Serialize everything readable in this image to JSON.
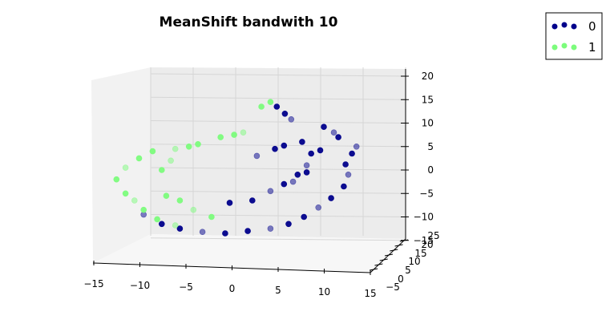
{
  "chart_data": {
    "type": "scatter",
    "title": "MeanShift bandwith 10",
    "projection": "3d",
    "xlim": [
      -15,
      15
    ],
    "ylim": [
      -5,
      25
    ],
    "zlim": [
      -15,
      20
    ],
    "x_ticks": [
      "−15",
      "−10",
      "−5",
      "0",
      "5",
      "10",
      "15"
    ],
    "y_ticks": [
      "−5",
      "0",
      "5",
      "10",
      "15",
      "20",
      "25"
    ],
    "z_ticks": [
      "−15",
      "−10",
      "−5",
      "0",
      "5",
      "10",
      "15",
      "20"
    ],
    "grid": true,
    "legend_position": "top-right",
    "series": [
      {
        "name": "0",
        "color": "#00008b",
        "points": [
          {
            "x": 5.2,
            "y": 0,
            "z": 13.5
          },
          {
            "x": 6.1,
            "y": 0,
            "z": 12.0
          },
          {
            "x": 6.8,
            "y": 0,
            "z": 10.8
          },
          {
            "x": 10.4,
            "y": 0,
            "z": 9.2
          },
          {
            "x": 12.0,
            "y": 0,
            "z": 7.0
          },
          {
            "x": 14.0,
            "y": 0,
            "z": 5.0
          },
          {
            "x": 13.5,
            "y": 0,
            "z": 3.5
          },
          {
            "x": 12.8,
            "y": 0,
            "z": 1.2
          },
          {
            "x": 13.1,
            "y": 0,
            "z": -1.0
          },
          {
            "x": 12.6,
            "y": 0,
            "z": -3.5
          },
          {
            "x": 11.2,
            "y": 0,
            "z": -6.0
          },
          {
            "x": 9.8,
            "y": 0,
            "z": -8.0
          },
          {
            "x": 8.2,
            "y": 0,
            "z": -10.0
          },
          {
            "x": 6.5,
            "y": 0,
            "z": -11.5
          },
          {
            "x": 4.5,
            "y": 0,
            "z": -12.5
          },
          {
            "x": 2.0,
            "y": 0,
            "z": -13.0
          },
          {
            "x": -0.5,
            "y": 0,
            "z": -13.5
          },
          {
            "x": -3.0,
            "y": 0,
            "z": -13.2
          },
          {
            "x": -5.5,
            "y": 0,
            "z": -12.5
          },
          {
            "x": -7.5,
            "y": 0,
            "z": -11.5
          },
          {
            "x": -9.5,
            "y": 0,
            "z": -9.5
          },
          {
            "x": 8.0,
            "y": 0,
            "z": 6.0
          },
          {
            "x": 9.0,
            "y": 0,
            "z": 3.5
          },
          {
            "x": 8.5,
            "y": 0,
            "z": 1.0
          },
          {
            "x": 7.5,
            "y": 0,
            "z": -1.0
          },
          {
            "x": 6.0,
            "y": 0,
            "z": -3.0
          },
          {
            "x": 4.5,
            "y": 0,
            "z": -4.5
          },
          {
            "x": 2.5,
            "y": 0,
            "z": -6.5
          },
          {
            "x": 0.0,
            "y": 0,
            "z": -7.0
          },
          {
            "x": 3.0,
            "y": 0,
            "z": 3.0
          },
          {
            "x": 5.0,
            "y": 0,
            "z": 4.5
          },
          {
            "x": 6.0,
            "y": 0,
            "z": 5.2
          },
          {
            "x": 7.0,
            "y": 0,
            "z": -2.5
          },
          {
            "x": 8.5,
            "y": 0,
            "z": -0.5
          },
          {
            "x": 10.0,
            "y": 0,
            "z": 4.2
          },
          {
            "x": 11.5,
            "y": 0,
            "z": 8.0
          }
        ]
      },
      {
        "name": "1",
        "color": "#7cfc7c",
        "points": [
          {
            "x": 4.5,
            "y": 0,
            "z": 14.5
          },
          {
            "x": 3.5,
            "y": 0,
            "z": 13.5
          },
          {
            "x": 1.5,
            "y": 0,
            "z": 8.0
          },
          {
            "x": -1.0,
            "y": 0,
            "z": 7.0
          },
          {
            "x": -3.5,
            "y": 0,
            "z": 5.5
          },
          {
            "x": -6.0,
            "y": 0,
            "z": 4.5
          },
          {
            "x": -8.5,
            "y": 0,
            "z": 4.0
          },
          {
            "x": -10.0,
            "y": 0,
            "z": 2.5
          },
          {
            "x": -11.5,
            "y": 0,
            "z": 0.5
          },
          {
            "x": -12.5,
            "y": 0,
            "z": -2.0
          },
          {
            "x": -11.5,
            "y": 0,
            "z": -5.0
          },
          {
            "x": -10.5,
            "y": 0,
            "z": -6.5
          },
          {
            "x": -9.5,
            "y": 0,
            "z": -8.5
          },
          {
            "x": -8.0,
            "y": 0,
            "z": -10.5
          },
          {
            "x": -6.0,
            "y": 0,
            "z": -11.8
          },
          {
            "x": -7.0,
            "y": 0,
            "z": -5.5
          },
          {
            "x": -5.5,
            "y": 0,
            "z": -6.5
          },
          {
            "x": -4.0,
            "y": 0,
            "z": -8.5
          },
          {
            "x": -2.0,
            "y": 0,
            "z": -10.0
          },
          {
            "x": -7.5,
            "y": 0,
            "z": 0.0
          },
          {
            "x": -6.5,
            "y": 0,
            "z": 2.0
          },
          {
            "x": -4.5,
            "y": 0,
            "z": 5.0
          },
          {
            "x": 0.5,
            "y": 0,
            "z": 7.5
          }
        ]
      }
    ]
  }
}
